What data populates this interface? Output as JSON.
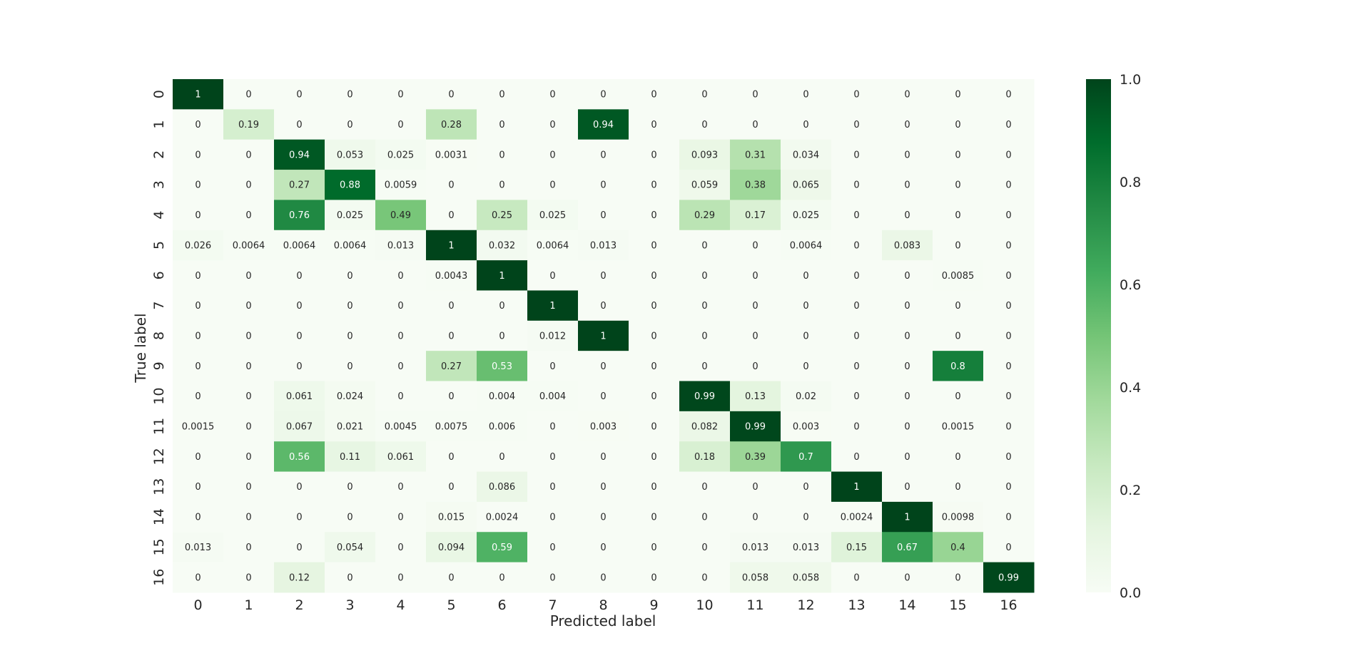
{
  "chart_data": {
    "type": "heatmap",
    "title": "",
    "xlabel": "Predicted label",
    "ylabel": "True label",
    "x_categories": [
      "0",
      "1",
      "2",
      "3",
      "4",
      "5",
      "6",
      "7",
      "8",
      "9",
      "10",
      "11",
      "12",
      "13",
      "14",
      "15",
      "16"
    ],
    "y_categories": [
      "0",
      "1",
      "2",
      "3",
      "4",
      "5",
      "6",
      "7",
      "8",
      "9",
      "10",
      "11",
      "12",
      "13",
      "14",
      "15",
      "16"
    ],
    "colormap": "Greens",
    "vmin": 0.0,
    "vmax": 1.0,
    "colorbar_ticks": [
      "0.0",
      "0.2",
      "0.4",
      "0.6",
      "0.8",
      "1.0"
    ],
    "cells": [
      [
        "1",
        "0",
        "0",
        "0",
        "0",
        "0",
        "0",
        "0",
        "0",
        "0",
        "0",
        "0",
        "0",
        "0",
        "0",
        "0",
        "0"
      ],
      [
        "0",
        "0.19",
        "0",
        "0",
        "0",
        "0.28",
        "0",
        "0",
        "0.94",
        "0",
        "0",
        "0",
        "0",
        "0",
        "0",
        "0",
        "0"
      ],
      [
        "0",
        "0",
        "0.94",
        "0.053",
        "0.025",
        "0.0031",
        "0",
        "0",
        "0",
        "0",
        "0.093",
        "0.31",
        "0.034",
        "0",
        "0",
        "0",
        "0"
      ],
      [
        "0",
        "0",
        "0.27",
        "0.88",
        "0.0059",
        "0",
        "0",
        "0",
        "0",
        "0",
        "0.059",
        "0.38",
        "0.065",
        "0",
        "0",
        "0",
        "0"
      ],
      [
        "0",
        "0",
        "0.76",
        "0.025",
        "0.49",
        "0",
        "0.25",
        "0.025",
        "0",
        "0",
        "0.29",
        "0.17",
        "0.025",
        "0",
        "0",
        "0",
        "0"
      ],
      [
        "0.026",
        "0.0064",
        "0.0064",
        "0.0064",
        "0.013",
        "1",
        "0.032",
        "0.0064",
        "0.013",
        "0",
        "0",
        "0",
        "0.0064",
        "0",
        "0.083",
        "0",
        "0"
      ],
      [
        "0",
        "0",
        "0",
        "0",
        "0",
        "0.0043",
        "1",
        "0",
        "0",
        "0",
        "0",
        "0",
        "0",
        "0",
        "0",
        "0.0085",
        "0"
      ],
      [
        "0",
        "0",
        "0",
        "0",
        "0",
        "0",
        "0",
        "1",
        "0",
        "0",
        "0",
        "0",
        "0",
        "0",
        "0",
        "0",
        "0"
      ],
      [
        "0",
        "0",
        "0",
        "0",
        "0",
        "0",
        "0",
        "0.012",
        "1",
        "0",
        "0",
        "0",
        "0",
        "0",
        "0",
        "0",
        "0"
      ],
      [
        "0",
        "0",
        "0",
        "0",
        "0",
        "0.27",
        "0.53",
        "0",
        "0",
        "0",
        "0",
        "0",
        "0",
        "0",
        "0",
        "0.8",
        "0"
      ],
      [
        "0",
        "0",
        "0.061",
        "0.024",
        "0",
        "0",
        "0.004",
        "0.004",
        "0",
        "0",
        "0.99",
        "0.13",
        "0.02",
        "0",
        "0",
        "0",
        "0"
      ],
      [
        "0.0015",
        "0",
        "0.067",
        "0.021",
        "0.0045",
        "0.0075",
        "0.006",
        "0",
        "0.003",
        "0",
        "0.082",
        "0.99",
        "0.003",
        "0",
        "0",
        "0.0015",
        "0"
      ],
      [
        "0",
        "0",
        "0.56",
        "0.11",
        "0.061",
        "0",
        "0",
        "0",
        "0",
        "0",
        "0.18",
        "0.39",
        "0.7",
        "0",
        "0",
        "0",
        "0"
      ],
      [
        "0",
        "0",
        "0",
        "0",
        "0",
        "0",
        "0.086",
        "0",
        "0",
        "0",
        "0",
        "0",
        "0",
        "1",
        "0",
        "0",
        "0"
      ],
      [
        "0",
        "0",
        "0",
        "0",
        "0",
        "0.015",
        "0.0024",
        "0",
        "0",
        "0",
        "0",
        "0",
        "0",
        "0.0024",
        "1",
        "0.0098",
        "0"
      ],
      [
        "0.013",
        "0",
        "0",
        "0.054",
        "0",
        "0.094",
        "0.59",
        "0",
        "0",
        "0",
        "0",
        "0.013",
        "0.013",
        "0.15",
        "0.67",
        "0.4",
        "0"
      ],
      [
        "0",
        "0",
        "0.12",
        "0",
        "0",
        "0",
        "0",
        "0",
        "0",
        "0",
        "0",
        "0.058",
        "0.058",
        "0",
        "0",
        "0",
        "0.99"
      ]
    ]
  }
}
